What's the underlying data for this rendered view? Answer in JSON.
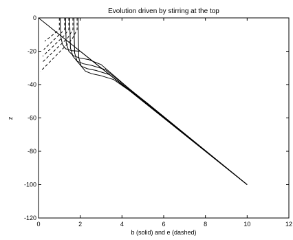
{
  "chart_data": {
    "type": "line",
    "title": "Evolution driven by stirring at the top",
    "xlabel": "b (solid) and e (dashed)",
    "ylabel": "z",
    "xlim": [
      0,
      12
    ],
    "ylim": [
      -120,
      0
    ],
    "xticks": [
      0,
      2,
      4,
      6,
      8,
      10,
      12
    ],
    "yticks": [
      0,
      -20,
      -40,
      -60,
      -80,
      -100,
      -120
    ],
    "xtick_labels": [
      "0",
      "2",
      "4",
      "6",
      "8",
      "10",
      "12"
    ],
    "ytick_labels": [
      "0",
      "-20",
      "-40",
      "-60",
      "-80",
      "-100",
      "-120"
    ],
    "grid": false,
    "colors": {
      "line": "#000000",
      "axes": "#000000",
      "background": "#ffffff"
    },
    "series": [
      {
        "style": "solid",
        "x": [
          0,
          1.0,
          5.0,
          10.0
        ],
        "y": [
          0,
          -10,
          -50,
          -100
        ]
      },
      {
        "style": "solid",
        "x": [
          1.05,
          1.05,
          1.08,
          1.15,
          1.3,
          1.6,
          2.0,
          5.0,
          10.0
        ],
        "y": [
          0,
          -5,
          -12,
          -16,
          -18.5,
          -19.7,
          -20,
          -50,
          -100
        ]
      },
      {
        "style": "solid",
        "x": [
          1.3,
          1.3,
          1.33,
          1.45,
          1.65,
          1.95,
          2.4,
          3.0,
          5.05,
          10.0
        ],
        "y": [
          0,
          -5,
          -15,
          -20,
          -22.5,
          -24,
          -25,
          -28,
          -50,
          -100
        ]
      },
      {
        "style": "solid",
        "x": [
          1.5,
          1.5,
          1.53,
          1.65,
          1.85,
          2.15,
          2.55,
          3.2,
          5.1,
          10.0
        ],
        "y": [
          0,
          -5,
          -18,
          -23,
          -26,
          -27.5,
          -28.5,
          -31,
          -50,
          -100
        ]
      },
      {
        "style": "solid",
        "x": [
          1.7,
          1.7,
          1.73,
          1.85,
          2.05,
          2.35,
          2.75,
          3.4,
          5.15,
          10.0
        ],
        "y": [
          0,
          -5,
          -21,
          -26,
          -29,
          -30.5,
          -31.5,
          -34,
          -50.5,
          -100
        ]
      },
      {
        "style": "solid",
        "x": [
          1.9,
          1.9,
          1.93,
          2.05,
          2.25,
          2.55,
          2.95,
          3.6,
          5.2,
          10.0
        ],
        "y": [
          0,
          -5,
          -24,
          -29,
          -32,
          -33.5,
          -34.5,
          -37,
          -51,
          -100
        ]
      },
      {
        "style": "dashed",
        "x": [
          1.0,
          1.0,
          0.8,
          0.3
        ],
        "y": [
          0,
          -7,
          -9,
          -14
        ]
      },
      {
        "style": "dashed",
        "x": [
          1.25,
          1.25,
          1.0,
          0.25
        ],
        "y": [
          0,
          -7,
          -10,
          -19
        ]
      },
      {
        "style": "dashed",
        "x": [
          1.45,
          1.45,
          1.2,
          0.2
        ],
        "y": [
          0,
          -7,
          -11,
          -23
        ]
      },
      {
        "style": "dashed",
        "x": [
          1.65,
          1.65,
          1.4,
          0.15
        ],
        "y": [
          0,
          -7,
          -12,
          -27
        ]
      },
      {
        "style": "dashed",
        "x": [
          1.85,
          1.85,
          1.6,
          0.1
        ],
        "y": [
          0,
          -7,
          -13,
          -32
        ]
      }
    ]
  }
}
